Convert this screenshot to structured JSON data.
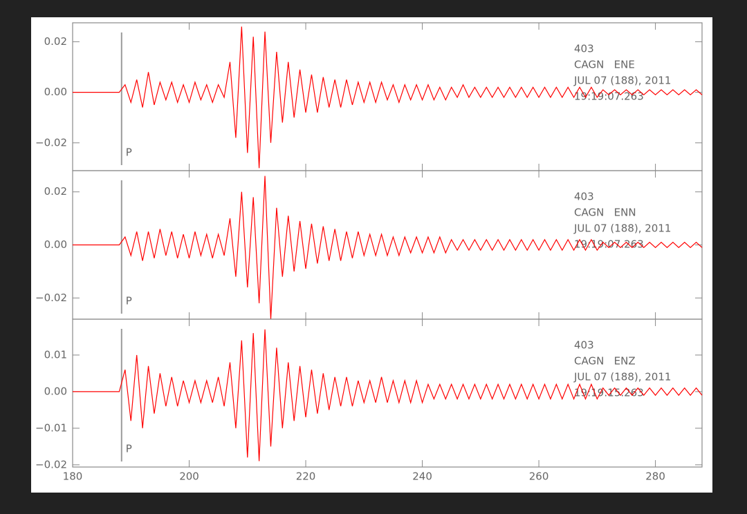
{
  "chart_data": [
    {
      "type": "line",
      "annotations": [
        "403",
        "CAGN   ENE",
        "JUL 07 (188), 2011",
        "19:19:07.263"
      ],
      "pick": {
        "label": "P",
        "x": 188.4
      },
      "xlim": [
        180,
        288
      ],
      "ylim": [
        -0.031,
        0.0275
      ],
      "yticks": [
        0.02,
        {
          "value": 0,
          "label": "0.00"
        },
        {
          "value": -0.02,
          "label": "−0.02"
        }
      ],
      "x": [
        180,
        181,
        182,
        183,
        184,
        185,
        186,
        187,
        188,
        189,
        190,
        191,
        192,
        193,
        194,
        195,
        196,
        197,
        198,
        199,
        200,
        201,
        202,
        203,
        204,
        205,
        206,
        207,
        208,
        209,
        210,
        211,
        212,
        213,
        214,
        215,
        216,
        217,
        218,
        219,
        220,
        221,
        222,
        223,
        224,
        225,
        226,
        227,
        228,
        229,
        230,
        231,
        232,
        233,
        234,
        235,
        236,
        237,
        238,
        239,
        240,
        241,
        242,
        243,
        244,
        245,
        246,
        247,
        248,
        249,
        250,
        251,
        252,
        253,
        254,
        255,
        256,
        257,
        258,
        259,
        260,
        261,
        262,
        263,
        264,
        265,
        266,
        267,
        268,
        269,
        270,
        271,
        272,
        273,
        274,
        275,
        276,
        277,
        278,
        279,
        280,
        281,
        282,
        283,
        284,
        285,
        286,
        287,
        288
      ],
      "series": [
        {
          "color": "#ff0000",
          "values": [
            0,
            0,
            0,
            0,
            0,
            0,
            0,
            0,
            0,
            0.003,
            -0.004,
            0.005,
            -0.006,
            0.008,
            -0.005,
            0.004,
            -0.003,
            0.004,
            -0.004,
            0.003,
            -0.004,
            0.004,
            -0.003,
            0.003,
            -0.004,
            0.003,
            -0.002,
            0.012,
            -0.018,
            0.026,
            -0.024,
            0.022,
            -0.03,
            0.024,
            -0.02,
            0.016,
            -0.012,
            0.012,
            -0.01,
            0.009,
            -0.008,
            0.007,
            -0.008,
            0.006,
            -0.006,
            0.005,
            -0.006,
            0.005,
            -0.005,
            0.004,
            -0.004,
            0.004,
            -0.004,
            0.004,
            -0.003,
            0.003,
            -0.004,
            0.003,
            -0.003,
            0.003,
            -0.003,
            0.003,
            -0.003,
            0.002,
            -0.003,
            0.002,
            -0.002,
            0.003,
            -0.002,
            0.002,
            -0.002,
            0.002,
            -0.002,
            0.002,
            -0.002,
            0.002,
            -0.002,
            0.002,
            -0.002,
            0.002,
            -0.002,
            0.002,
            -0.002,
            0.002,
            -0.002,
            0.002,
            -0.002,
            0.002,
            -0.002,
            0.002,
            -0.002,
            0.001,
            -0.001,
            0.001,
            -0.001,
            0.001,
            -0.001,
            0.001,
            -0.001,
            0.001,
            -0.001,
            0.001,
            -0.001,
            0.001,
            -0.001,
            0.001,
            -0.001,
            0.001,
            -0.001
          ]
        }
      ]
    },
    {
      "type": "line",
      "annotations": [
        "403",
        "CAGN   ENN",
        "JUL 07 (188), 2011",
        "19:19:07.263"
      ],
      "pick": {
        "label": "P",
        "x": 188.4
      },
      "xlim": [
        180,
        288
      ],
      "ylim": [
        -0.028,
        0.028
      ],
      "yticks": [
        0.02,
        {
          "value": 0,
          "label": "0.00"
        },
        {
          "value": -0.02,
          "label": "−0.02"
        }
      ],
      "x": [
        180,
        181,
        182,
        183,
        184,
        185,
        186,
        187,
        188,
        189,
        190,
        191,
        192,
        193,
        194,
        195,
        196,
        197,
        198,
        199,
        200,
        201,
        202,
        203,
        204,
        205,
        206,
        207,
        208,
        209,
        210,
        211,
        212,
        213,
        214,
        215,
        216,
        217,
        218,
        219,
        220,
        221,
        222,
        223,
        224,
        225,
        226,
        227,
        228,
        229,
        230,
        231,
        232,
        233,
        234,
        235,
        236,
        237,
        238,
        239,
        240,
        241,
        242,
        243,
        244,
        245,
        246,
        247,
        248,
        249,
        250,
        251,
        252,
        253,
        254,
        255,
        256,
        257,
        258,
        259,
        260,
        261,
        262,
        263,
        264,
        265,
        266,
        267,
        268,
        269,
        270,
        271,
        272,
        273,
        274,
        275,
        276,
        277,
        278,
        279,
        280,
        281,
        282,
        283,
        284,
        285,
        286,
        287,
        288
      ],
      "series": [
        {
          "color": "#ff0000",
          "values": [
            0,
            0,
            0,
            0,
            0,
            0,
            0,
            0,
            0,
            0.003,
            -0.004,
            0.005,
            -0.006,
            0.005,
            -0.005,
            0.006,
            -0.004,
            0.005,
            -0.005,
            0.004,
            -0.005,
            0.005,
            -0.004,
            0.004,
            -0.005,
            0.004,
            -0.004,
            0.01,
            -0.012,
            0.02,
            -0.016,
            0.018,
            -0.022,
            0.026,
            -0.028,
            0.014,
            -0.012,
            0.011,
            -0.01,
            0.009,
            -0.009,
            0.008,
            -0.007,
            0.007,
            -0.006,
            0.006,
            -0.006,
            0.005,
            -0.005,
            0.005,
            -0.004,
            0.004,
            -0.004,
            0.004,
            -0.004,
            0.003,
            -0.004,
            0.003,
            -0.003,
            0.003,
            -0.003,
            0.003,
            -0.003,
            0.003,
            -0.003,
            0.002,
            -0.002,
            0.002,
            -0.002,
            0.002,
            -0.002,
            0.002,
            -0.002,
            0.002,
            -0.002,
            0.002,
            -0.002,
            0.002,
            -0.002,
            0.002,
            -0.002,
            0.002,
            -0.002,
            0.002,
            -0.002,
            0.002,
            -0.002,
            0.002,
            -0.002,
            0.002,
            -0.002,
            0.001,
            -0.001,
            0.001,
            -0.001,
            0.001,
            -0.001,
            0.001,
            -0.001,
            0.001,
            -0.001,
            0.001,
            -0.001,
            0.001,
            -0.001,
            0.001,
            -0.001,
            0.001,
            -0.001
          ]
        }
      ]
    },
    {
      "type": "line",
      "annotations": [
        "403",
        "CAGN   ENZ",
        "JUL 07 (188), 2011",
        "19:19:15.263"
      ],
      "pick": {
        "label": "P",
        "x": 188.4
      },
      "xlim": [
        180,
        288
      ],
      "ylim": [
        -0.0206,
        0.0198
      ],
      "xticks": [
        180,
        200,
        220,
        240,
        260,
        280
      ],
      "yticks": [
        0.01,
        {
          "value": 0,
          "label": "0.00"
        },
        {
          "value": -0.01,
          "label": "−0.01"
        },
        {
          "value": -0.02,
          "label": "−0.02"
        }
      ],
      "x": [
        180,
        181,
        182,
        183,
        184,
        185,
        186,
        187,
        188,
        189,
        190,
        191,
        192,
        193,
        194,
        195,
        196,
        197,
        198,
        199,
        200,
        201,
        202,
        203,
        204,
        205,
        206,
        207,
        208,
        209,
        210,
        211,
        212,
        213,
        214,
        215,
        216,
        217,
        218,
        219,
        220,
        221,
        222,
        223,
        224,
        225,
        226,
        227,
        228,
        229,
        230,
        231,
        232,
        233,
        234,
        235,
        236,
        237,
        238,
        239,
        240,
        241,
        242,
        243,
        244,
        245,
        246,
        247,
        248,
        249,
        250,
        251,
        252,
        253,
        254,
        255,
        256,
        257,
        258,
        259,
        260,
        261,
        262,
        263,
        264,
        265,
        266,
        267,
        268,
        269,
        270,
        271,
        272,
        273,
        274,
        275,
        276,
        277,
        278,
        279,
        280,
        281,
        282,
        283,
        284,
        285,
        286,
        287,
        288
      ],
      "series": [
        {
          "color": "#ff0000",
          "values": [
            0,
            0,
            0,
            0,
            0,
            0,
            0,
            0,
            0,
            0.006,
            -0.008,
            0.01,
            -0.01,
            0.007,
            -0.006,
            0.005,
            -0.004,
            0.004,
            -0.004,
            0.003,
            -0.003,
            0.003,
            -0.003,
            0.003,
            -0.003,
            0.004,
            -0.004,
            0.008,
            -0.01,
            0.014,
            -0.018,
            0.016,
            -0.019,
            0.017,
            -0.015,
            0.012,
            -0.01,
            0.008,
            -0.008,
            0.007,
            -0.007,
            0.006,
            -0.006,
            0.005,
            -0.005,
            0.004,
            -0.004,
            0.004,
            -0.004,
            0.003,
            -0.003,
            0.003,
            -0.003,
            0.004,
            -0.003,
            0.003,
            -0.003,
            0.003,
            -0.003,
            0.003,
            -0.003,
            0.002,
            -0.002,
            0.002,
            -0.002,
            0.002,
            -0.002,
            0.002,
            -0.002,
            0.002,
            -0.002,
            0.002,
            -0.002,
            0.002,
            -0.002,
            0.002,
            -0.002,
            0.002,
            -0.002,
            0.002,
            -0.002,
            0.002,
            -0.002,
            0.002,
            -0.002,
            0.002,
            -0.002,
            0.002,
            -0.002,
            0.002,
            -0.002,
            0.001,
            -0.001,
            0.001,
            -0.001,
            0.001,
            -0.001,
            0.001,
            -0.001,
            0.001,
            -0.001,
            0.001,
            -0.001,
            0.001,
            -0.001,
            0.001,
            -0.001,
            0.001,
            -0.001
          ]
        }
      ]
    }
  ]
}
